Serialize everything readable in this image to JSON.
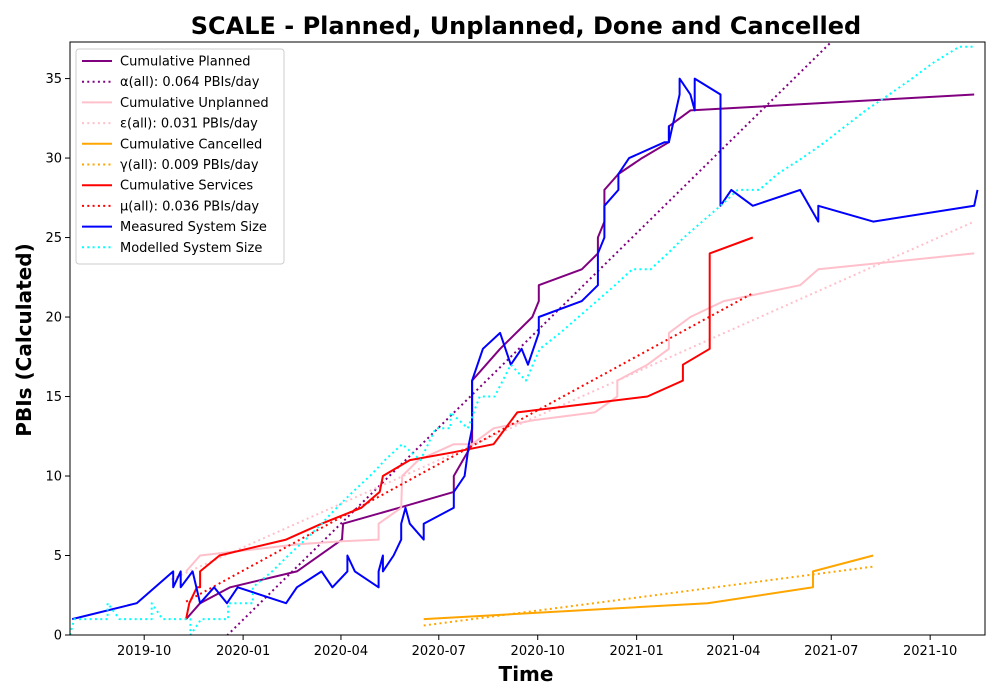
{
  "chart_data": {
    "type": "line",
    "title": "SCALE - Planned, Unplanned, Done  and Cancelled",
    "xlabel": "Time",
    "ylabel": "PBIs (Calculated)",
    "xlim": [
      "2019-07-24",
      "2021-11-21"
    ],
    "ylim": [
      0,
      37.3
    ],
    "x_ticks": [
      "2019-10",
      "2020-01",
      "2020-04",
      "2020-07",
      "2020-10",
      "2021-01",
      "2021-04",
      "2021-07",
      "2021-10"
    ],
    "y_ticks": [
      0,
      5,
      10,
      15,
      20,
      25,
      30,
      35
    ],
    "grid": false,
    "legend_position": "top-left",
    "series": [
      {
        "name": "Cumulative Planned",
        "color": "#800080",
        "style": "solid",
        "points": [
          [
            "2019-11-09",
            1
          ],
          [
            "2019-11-22",
            2
          ],
          [
            "2019-12-20",
            3
          ],
          [
            "2020-02-20",
            4
          ],
          [
            "2020-04-02",
            6
          ],
          [
            "2020-04-03",
            7
          ],
          [
            "2020-05-25",
            8
          ],
          [
            "2020-07-15",
            9
          ],
          [
            "2020-07-15",
            10
          ],
          [
            "2020-08-01",
            12
          ],
          [
            "2020-08-01",
            16
          ],
          [
            "2020-08-27",
            18
          ],
          [
            "2020-09-26",
            20
          ],
          [
            "2020-10-02",
            21
          ],
          [
            "2020-10-02",
            22
          ],
          [
            "2020-11-11",
            23
          ],
          [
            "2020-11-26",
            24
          ],
          [
            "2020-11-26",
            25
          ],
          [
            "2020-12-02",
            26
          ],
          [
            "2020-12-02",
            28
          ],
          [
            "2020-12-15",
            29
          ],
          [
            "2020-12-15",
            29
          ],
          [
            "2021-01-06",
            30
          ],
          [
            "2021-01-31",
            31
          ],
          [
            "2021-01-31",
            32
          ],
          [
            "2021-02-20",
            33
          ],
          [
            "2021-11-11",
            34
          ]
        ]
      },
      {
        "name": "α(all): 0.064 PBIs/day",
        "color": "#800080",
        "style": "dotted",
        "points": [
          [
            "2019-12-10",
            -0.5
          ],
          [
            "2021-07-01",
            37.3
          ]
        ]
      },
      {
        "name": "Cumulative Unplanned",
        "color": "#ffc0cb",
        "style": "solid",
        "points": [
          [
            "2019-11-09",
            4
          ],
          [
            "2019-11-22",
            5
          ],
          [
            "2020-02-20",
            5.7
          ],
          [
            "2020-04-02",
            5.9
          ],
          [
            "2020-05-06",
            6
          ],
          [
            "2020-05-06",
            7
          ],
          [
            "2020-05-27",
            8
          ],
          [
            "2020-05-28",
            10
          ],
          [
            "2020-06-12",
            11
          ],
          [
            "2020-07-15",
            12
          ],
          [
            "2020-08-01",
            12
          ],
          [
            "2020-08-21",
            13
          ],
          [
            "2020-09-26",
            13.5
          ],
          [
            "2020-11-23",
            14
          ],
          [
            "2020-12-14",
            15
          ],
          [
            "2020-12-14",
            16
          ],
          [
            "2021-01-11",
            17
          ],
          [
            "2021-01-31",
            18
          ],
          [
            "2021-01-31",
            19
          ],
          [
            "2021-02-20",
            20
          ],
          [
            "2021-03-23",
            21
          ],
          [
            "2021-06-02",
            22
          ],
          [
            "2021-06-19",
            23
          ],
          [
            "2021-11-11",
            24
          ]
        ]
      },
      {
        "name": "ε(all): 0.031 PBIs/day",
        "color": "#ffc0cb",
        "style": "dotted",
        "points": [
          [
            "2019-10-26",
            3.5
          ],
          [
            "2021-11-11",
            26
          ]
        ]
      },
      {
        "name": "Cumulative Cancelled",
        "color": "#ffa500",
        "style": "solid",
        "points": [
          [
            "2020-06-17",
            1
          ],
          [
            "2021-03-08",
            2
          ],
          [
            "2021-06-14",
            3
          ],
          [
            "2021-06-14",
            4
          ],
          [
            "2021-08-09",
            5
          ]
        ]
      },
      {
        "name": "γ(all): 0.009 PBIs/day",
        "color": "#ffa500",
        "style": "dotted",
        "points": [
          [
            "2020-06-17",
            0.6
          ],
          [
            "2021-08-09",
            4.3
          ]
        ]
      },
      {
        "name": "Cumulative Services",
        "color": "#ff0000",
        "style": "solid",
        "points": [
          [
            "2019-11-09",
            1
          ],
          [
            "2019-11-12",
            2
          ],
          [
            "2019-11-19",
            3
          ],
          [
            "2019-11-22",
            3
          ],
          [
            "2019-11-22",
            4
          ],
          [
            "2019-12-10",
            5
          ],
          [
            "2020-02-10",
            6
          ],
          [
            "2020-03-14",
            7
          ],
          [
            "2020-04-20",
            8
          ],
          [
            "2020-05-07",
            9
          ],
          [
            "2020-05-10",
            10
          ],
          [
            "2020-06-04",
            11
          ],
          [
            "2020-07-15",
            11.5
          ],
          [
            "2020-08-21",
            12
          ],
          [
            "2020-09-12",
            14
          ],
          [
            "2021-01-11",
            15
          ],
          [
            "2021-02-13",
            16
          ],
          [
            "2021-02-13",
            17
          ],
          [
            "2021-03-10",
            18
          ],
          [
            "2021-03-10",
            24
          ],
          [
            "2021-04-19",
            25
          ]
        ]
      },
      {
        "name": "μ(all): 0.036 PBIs/day",
        "color": "#ff0000",
        "style": "dotted",
        "points": [
          [
            "2019-11-09",
            2.1
          ],
          [
            "2021-04-19",
            21.5
          ]
        ]
      },
      {
        "name": "Measured System Size",
        "color": "#0000ff",
        "style": "solid",
        "points": [
          [
            "2019-07-26",
            1
          ],
          [
            "2019-09-24",
            2
          ],
          [
            "2019-10-28",
            4
          ],
          [
            "2019-10-28",
            3
          ],
          [
            "2019-11-04",
            4
          ],
          [
            "2019-11-04",
            3
          ],
          [
            "2019-11-15",
            4
          ],
          [
            "2019-11-22",
            2
          ],
          [
            "2019-12-05",
            3
          ],
          [
            "2019-12-17",
            2
          ],
          [
            "2019-12-27",
            3
          ],
          [
            "2020-02-10",
            2
          ],
          [
            "2020-02-20",
            3
          ],
          [
            "2020-03-14",
            4
          ],
          [
            "2020-03-24",
            3
          ],
          [
            "2020-04-07",
            4
          ],
          [
            "2020-04-07",
            5
          ],
          [
            "2020-04-14",
            4
          ],
          [
            "2020-05-06",
            3
          ],
          [
            "2020-05-06",
            4
          ],
          [
            "2020-05-10",
            5
          ],
          [
            "2020-05-10",
            4
          ],
          [
            "2020-05-20",
            5
          ],
          [
            "2020-05-27",
            6
          ],
          [
            "2020-05-27",
            7
          ],
          [
            "2020-05-31",
            8
          ],
          [
            "2020-06-04",
            7
          ],
          [
            "2020-06-17",
            6
          ],
          [
            "2020-06-17",
            7
          ],
          [
            "2020-07-15",
            8
          ],
          [
            "2020-07-15",
            9
          ],
          [
            "2020-07-25",
            10
          ],
          [
            "2020-07-29",
            12
          ],
          [
            "2020-08-01",
            13
          ],
          [
            "2020-08-01",
            16
          ],
          [
            "2020-08-11",
            18
          ],
          [
            "2020-08-27",
            19
          ],
          [
            "2020-09-06",
            17
          ],
          [
            "2020-09-16",
            18
          ],
          [
            "2020-09-22",
            17
          ],
          [
            "2020-10-02",
            19
          ],
          [
            "2020-10-02",
            20
          ],
          [
            "2020-11-11",
            21
          ],
          [
            "2020-11-26",
            22
          ],
          [
            "2020-11-26",
            24
          ],
          [
            "2020-12-02",
            25
          ],
          [
            "2020-12-02",
            27
          ],
          [
            "2020-12-15",
            28
          ],
          [
            "2020-12-15",
            29
          ],
          [
            "2020-12-25",
            30
          ],
          [
            "2021-01-27",
            31
          ],
          [
            "2021-01-31",
            31
          ],
          [
            "2021-01-31",
            32
          ],
          [
            "2021-01-31",
            31
          ],
          [
            "2021-02-10",
            34
          ],
          [
            "2021-02-10",
            35
          ],
          [
            "2021-02-20",
            34
          ],
          [
            "2021-02-24",
            33
          ],
          [
            "2021-02-24",
            35
          ],
          [
            "2021-03-20",
            34
          ],
          [
            "2021-03-20",
            27
          ],
          [
            "2021-03-30",
            28
          ],
          [
            "2021-04-19",
            27
          ],
          [
            "2021-06-02",
            28
          ],
          [
            "2021-06-19",
            26
          ],
          [
            "2021-06-19",
            27
          ],
          [
            "2021-08-09",
            26
          ],
          [
            "2021-11-11",
            27
          ],
          [
            "2021-11-14",
            28
          ]
        ]
      },
      {
        "name": "Modelled System Size",
        "color": "#00ffff",
        "style": "dotted",
        "points": [
          [
            "2019-07-24",
            0
          ],
          [
            "2019-07-28",
            1
          ],
          [
            "2019-08-28",
            1
          ],
          [
            "2019-08-28",
            2
          ],
          [
            "2019-09-08",
            1
          ],
          [
            "2019-10-08",
            1
          ],
          [
            "2019-10-08",
            2
          ],
          [
            "2019-10-18",
            1
          ],
          [
            "2019-11-13",
            1
          ],
          [
            "2019-11-13",
            0
          ],
          [
            "2019-11-23",
            1
          ],
          [
            "2019-12-18",
            1
          ],
          [
            "2019-12-18",
            2
          ],
          [
            "2020-01-10",
            2
          ],
          [
            "2020-01-10",
            3
          ],
          [
            "2020-01-28",
            4
          ],
          [
            "2020-02-12",
            5
          ],
          [
            "2020-02-28",
            6
          ],
          [
            "2020-03-14",
            7
          ],
          [
            "2020-03-28",
            8
          ],
          [
            "2020-04-12",
            9
          ],
          [
            "2020-04-28",
            10
          ],
          [
            "2020-05-12",
            11
          ],
          [
            "2020-05-28",
            12
          ],
          [
            "2020-06-14",
            11
          ],
          [
            "2020-06-28",
            13
          ],
          [
            "2020-07-12",
            13
          ],
          [
            "2020-07-12",
            14
          ],
          [
            "2020-07-28",
            13
          ],
          [
            "2020-08-08",
            15
          ],
          [
            "2020-08-22",
            15
          ],
          [
            "2020-09-06",
            17
          ],
          [
            "2020-09-20",
            16
          ],
          [
            "2020-10-03",
            18
          ],
          [
            "2020-10-22",
            19
          ],
          [
            "2020-11-08",
            20
          ],
          [
            "2020-11-25",
            21
          ],
          [
            "2020-12-12",
            22
          ],
          [
            "2020-12-28",
            23
          ],
          [
            "2021-01-14",
            23
          ],
          [
            "2021-01-30",
            24
          ],
          [
            "2021-02-14",
            25
          ],
          [
            "2021-03-03",
            26
          ],
          [
            "2021-03-20",
            27
          ],
          [
            "2021-04-05",
            28
          ],
          [
            "2021-04-25",
            28
          ],
          [
            "2021-05-12",
            29
          ],
          [
            "2021-06-04",
            30
          ],
          [
            "2021-06-25",
            31
          ],
          [
            "2021-07-14",
            32
          ],
          [
            "2021-08-02",
            33
          ],
          [
            "2021-08-24",
            34
          ],
          [
            "2021-09-14",
            35
          ],
          [
            "2021-10-04",
            36
          ],
          [
            "2021-10-28",
            37
          ],
          [
            "2021-11-11",
            37
          ]
        ]
      }
    ]
  }
}
